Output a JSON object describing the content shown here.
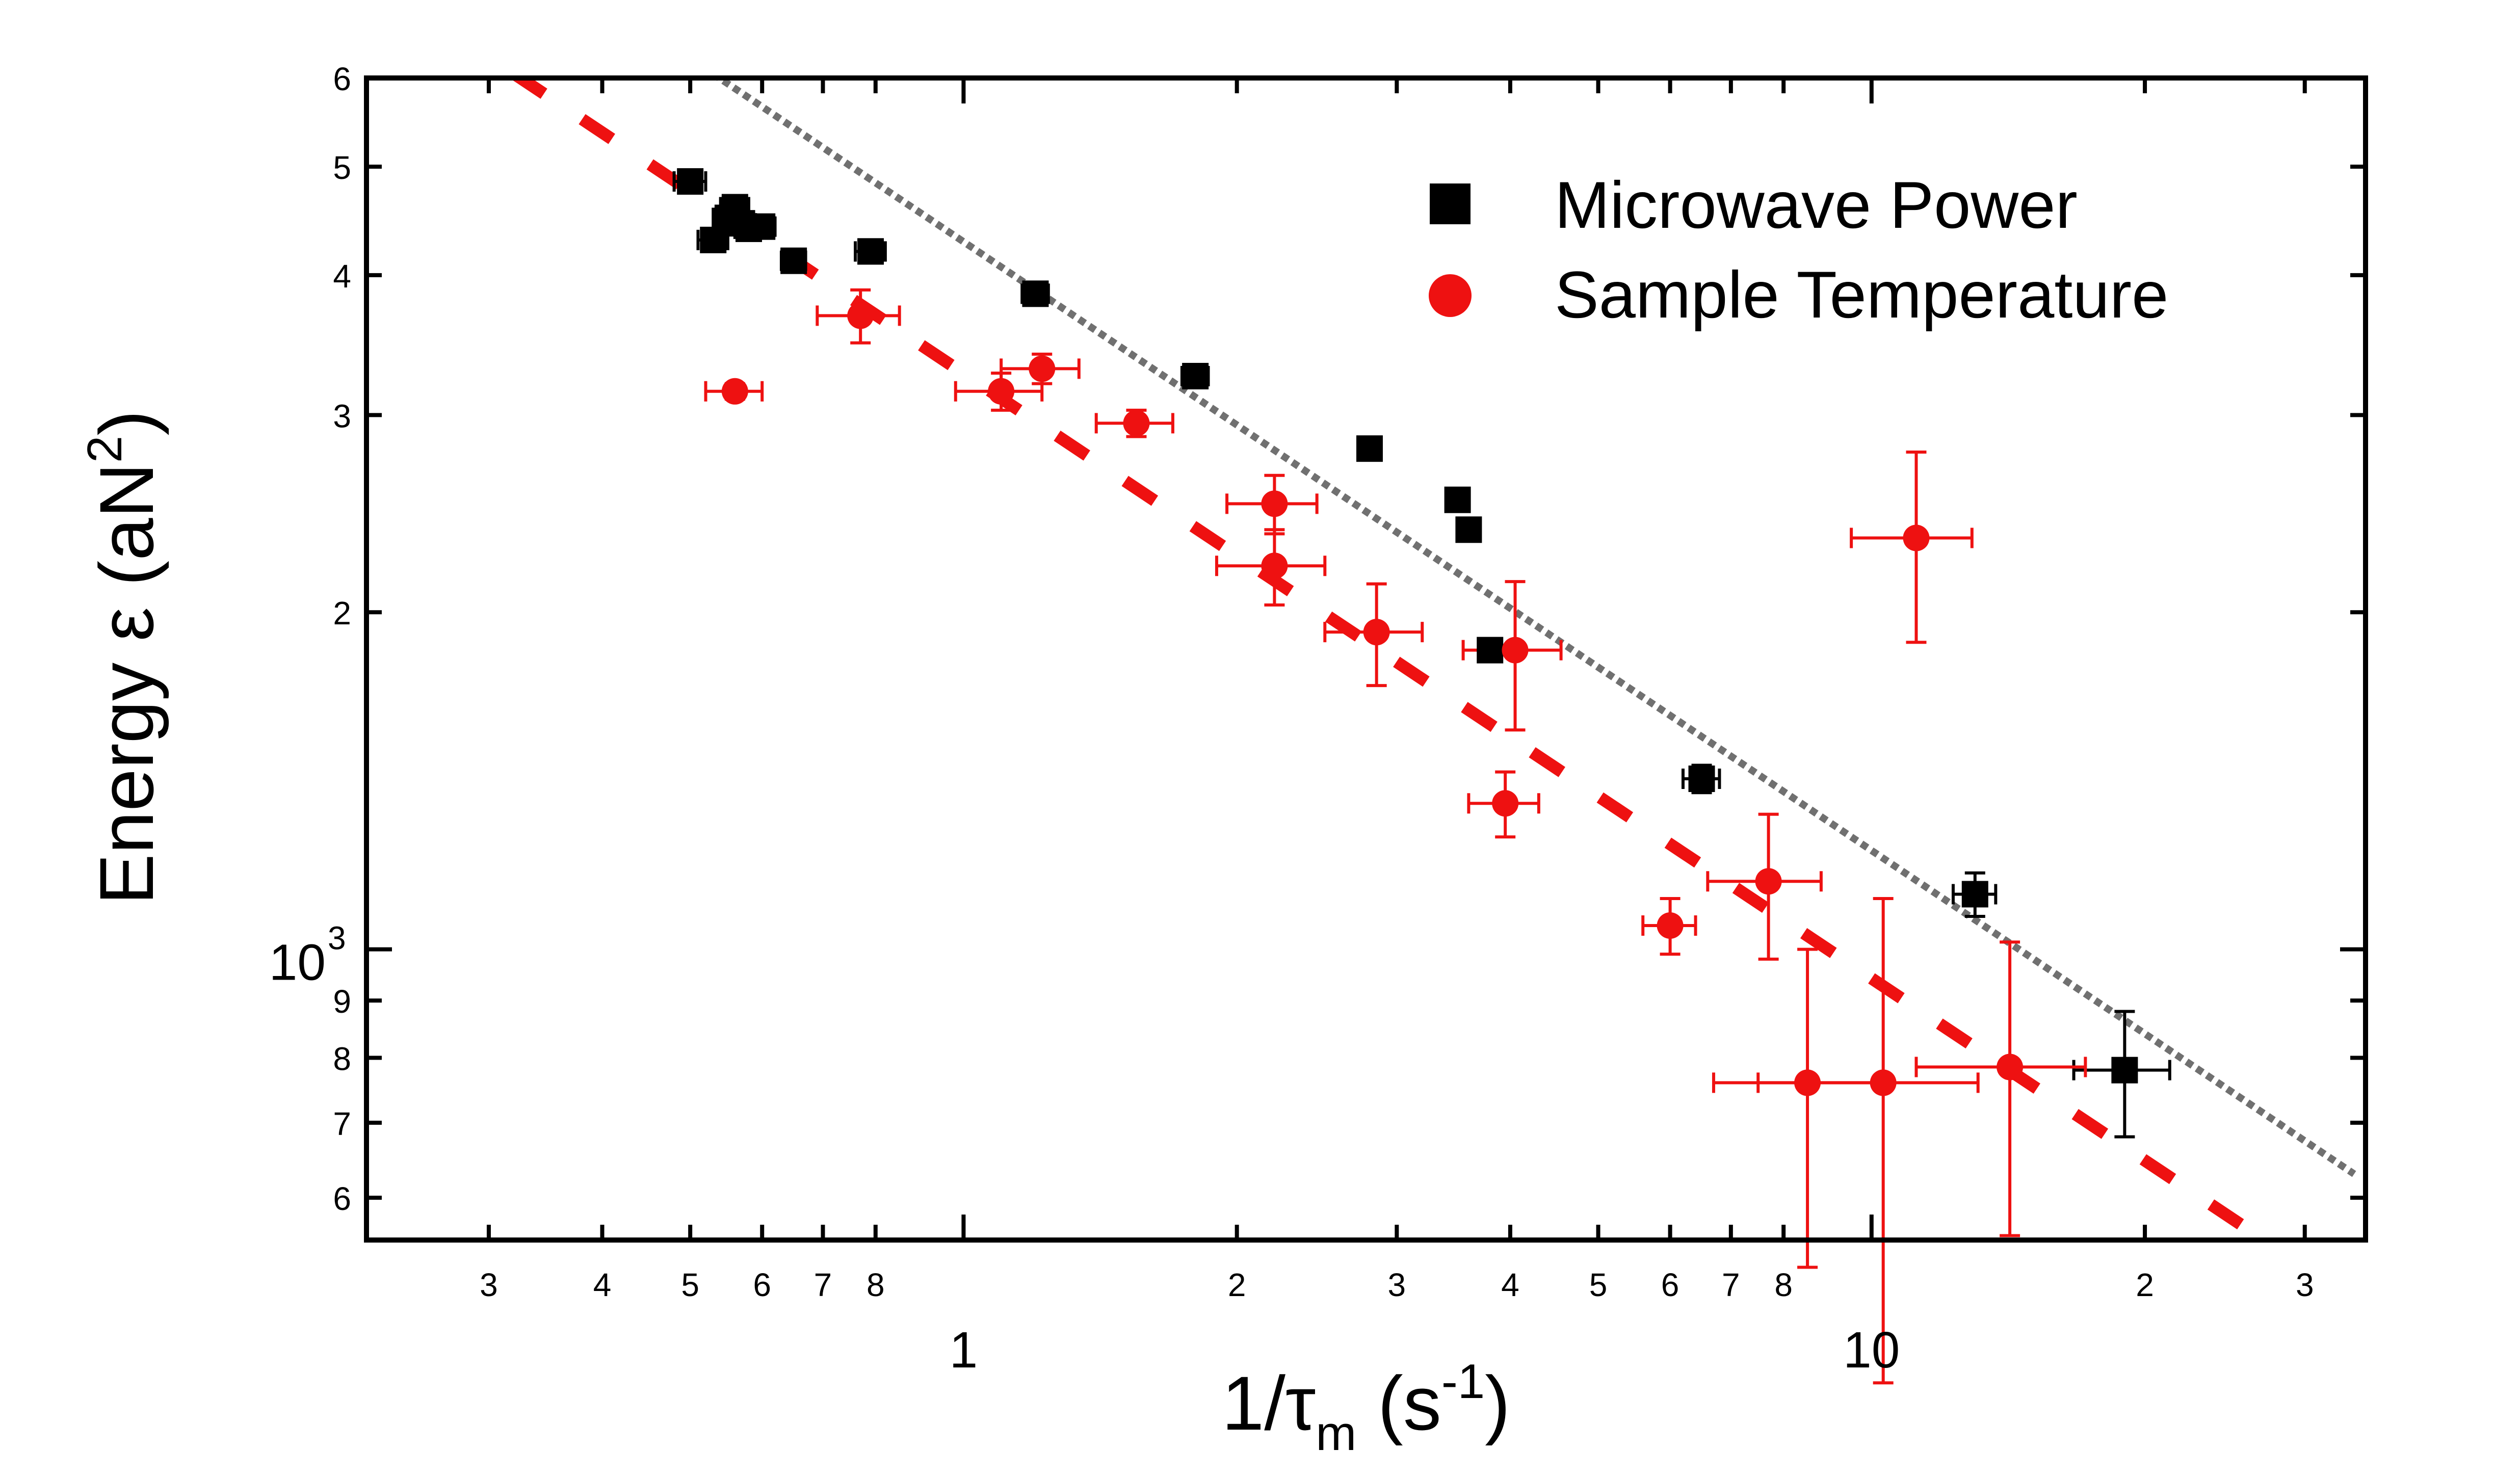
{
  "chart_data": {
    "type": "scatter",
    "title": "",
    "xlabel": {
      "main": "1/τ",
      "sub": "m",
      "unit_open": " (s",
      "unit_sup": "-1",
      "unit_close": ")"
    },
    "ylabel": {
      "main": "Energy ε (aN",
      "sup": "2",
      "close": ")"
    },
    "xscale": "log",
    "yscale": "log",
    "xlim": [
      0.22,
      35
    ],
    "ylim": [
      550,
      6000
    ],
    "x_minor_ticks": [
      3,
      4,
      5,
      6,
      7,
      8,
      2,
      3,
      4,
      5,
      6,
      7,
      8,
      2,
      3
    ],
    "x_minor_tick_values": [
      0.3,
      0.4,
      0.5,
      0.6,
      0.7,
      0.8,
      2,
      3,
      4,
      5,
      6,
      7,
      8,
      20,
      30
    ],
    "x_decade_ticks": [
      1,
      10
    ],
    "x_decade_labels": [
      "1",
      "10"
    ],
    "y_minor_ticks": [
      6,
      7,
      8,
      9,
      2,
      3,
      4,
      5,
      6
    ],
    "y_minor_tick_values": [
      600,
      700,
      800,
      900,
      2000,
      3000,
      4000,
      5000,
      6000
    ],
    "y_decade_label": {
      "base": "10",
      "exp": "3",
      "value": 1000
    },
    "legend": {
      "position": "top-right",
      "entries": [
        {
          "label": "Microwave Power",
          "marker": "square",
          "color": "#000000"
        },
        {
          "label": "Sample Temperature",
          "marker": "circle",
          "color": "#ee1111"
        }
      ]
    },
    "series": [
      {
        "name": "Microwave Power",
        "marker": "square",
        "color": "#000000",
        "points": [
          {
            "x": 0.5,
            "y": 4850,
            "xe": 0.02,
            "ye": 80
          },
          {
            "x": 0.53,
            "y": 4300,
            "xe": 0.02,
            "ye": 80
          },
          {
            "x": 0.55,
            "y": 4500,
            "xe": 0.02,
            "ye": 80
          },
          {
            "x": 0.56,
            "y": 4600,
            "xe": 0.02,
            "ye": 80
          },
          {
            "x": 0.57,
            "y": 4450,
            "xe": 0.02,
            "ye": 80
          },
          {
            "x": 0.58,
            "y": 4400,
            "xe": 0.02,
            "ye": 80
          },
          {
            "x": 0.6,
            "y": 4420,
            "xe": 0.02,
            "ye": 80
          },
          {
            "x": 0.65,
            "y": 4120,
            "xe": 0.02,
            "ye": 80
          },
          {
            "x": 0.79,
            "y": 4200,
            "xe": 0.03,
            "ye": 80
          },
          {
            "x": 1.2,
            "y": 3850,
            "xe": 0.04,
            "ye": 70
          },
          {
            "x": 1.8,
            "y": 3250,
            "xe": 0.06,
            "ye": 60
          },
          {
            "x": 2.8,
            "y": 2800,
            "xe": 0.08,
            "ye": 60
          },
          {
            "x": 3.5,
            "y": 2520,
            "xe": 0.1,
            "ye": 50
          },
          {
            "x": 3.6,
            "y": 2370,
            "xe": 0.1,
            "ye": 50
          },
          {
            "x": 3.8,
            "y": 1850,
            "xe": 0.1,
            "ye": 30
          },
          {
            "x": 6.5,
            "y": 1420,
            "xe": 0.3,
            "ye": 40
          },
          {
            "x": 13.0,
            "y": 1120,
            "xe": 0.7,
            "ye": 50
          },
          {
            "x": 19.0,
            "y": 780,
            "xe": 2.3,
            "ye": 100
          }
        ]
      },
      {
        "name": "Sample Temperature",
        "marker": "circle",
        "color": "#ee1111",
        "points": [
          {
            "x": 0.56,
            "y": 3150,
            "xe": 0.04,
            "ye": 50
          },
          {
            "x": 0.77,
            "y": 3680,
            "xe": 0.08,
            "ye": 200
          },
          {
            "x": 1.1,
            "y": 3150,
            "xe": 0.12,
            "ye": 120
          },
          {
            "x": 1.22,
            "y": 3300,
            "xe": 0.12,
            "ye": 100
          },
          {
            "x": 1.55,
            "y": 2950,
            "xe": 0.15,
            "ye": 80
          },
          {
            "x": 2.2,
            "y": 2500,
            "xe": 0.25,
            "ye": 150
          },
          {
            "x": 2.2,
            "y": 2200,
            "xe": 0.3,
            "ye": 170
          },
          {
            "x": 2.85,
            "y": 1920,
            "xe": 0.35,
            "ye": 200
          },
          {
            "x": 4.05,
            "y": 1850,
            "xe": 0.5,
            "ye": 280
          },
          {
            "x": 3.95,
            "y": 1350,
            "xe": 0.35,
            "ye": 90
          },
          {
            "x": 6.0,
            "y": 1050,
            "xe": 0.4,
            "ye": 60
          },
          {
            "x": 7.7,
            "y": 1150,
            "xe": 1.1,
            "ye": 170
          },
          {
            "x": 8.5,
            "y": 760,
            "xe": 1.8,
            "ye": 240
          },
          {
            "x": 10.3,
            "y": 760,
            "xe": 2.8,
            "ye": 350
          },
          {
            "x": 11.2,
            "y": 2330,
            "xe": 1.7,
            "ye": 450
          },
          {
            "x": 14.2,
            "y": 785,
            "xe": 3.0,
            "ye": 230
          }
        ]
      }
    ],
    "fit_lines": [
      {
        "name": "dashed fit",
        "style": "dashed",
        "color": "#ee1111",
        "x": [
          0.32,
          28
        ],
        "y": [
          6050,
          540
        ]
      },
      {
        "name": "dotted fit",
        "style": "dotted",
        "color": "#707070",
        "x": [
          0.53,
          34
        ],
        "y": [
          6050,
          630
        ]
      }
    ]
  }
}
